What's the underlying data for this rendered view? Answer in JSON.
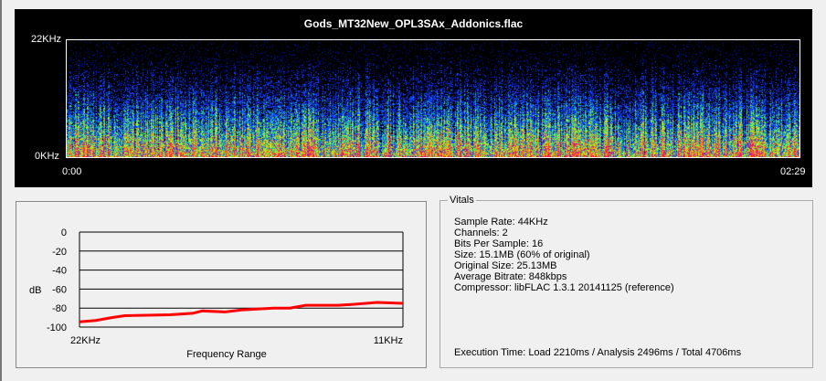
{
  "spectrogram": {
    "title": "Gods_MT32New_OPL3SAx_Addonics.flac",
    "y_top": "22KHz",
    "y_bottom": "0KHz",
    "x_start": "0:00",
    "x_end": "02:29"
  },
  "chart_data": {
    "type": "line",
    "ylabel": "dB",
    "xlabel": "Frequency Range",
    "x_tick_labels": [
      "22KHz",
      "11KHz"
    ],
    "ylim": [
      -100,
      0
    ],
    "y_ticks": [
      0,
      -20,
      -40,
      -60,
      -80,
      -100
    ],
    "grid": "horizontal",
    "x": [
      0,
      0.05,
      0.1,
      0.14,
      0.28,
      0.35,
      0.38,
      0.45,
      0.5,
      0.55,
      0.6,
      0.65,
      0.7,
      0.8,
      0.85,
      0.92,
      1.0
    ],
    "y": [
      -94.5,
      -93,
      -90,
      -88,
      -87,
      -85.5,
      -83,
      -84,
      -82,
      -81,
      -80,
      -80,
      -77,
      -77,
      -76,
      -74,
      -75
    ],
    "color": "#ff0000"
  },
  "vitals": {
    "title": "Vitals",
    "lines": [
      "Sample Rate: 44KHz",
      "Channels: 2",
      "Bits Per Sample: 16",
      "Size: 15.1MB (60% of original)",
      "Original Size: 25.13MB",
      "Average Bitrate: 848kbps",
      "Compressor: libFLAC 1.3.1 20141125 (reference)"
    ],
    "execution": "Execution Time: Load 2210ms / Analysis 2496ms / Total 4706ms"
  }
}
